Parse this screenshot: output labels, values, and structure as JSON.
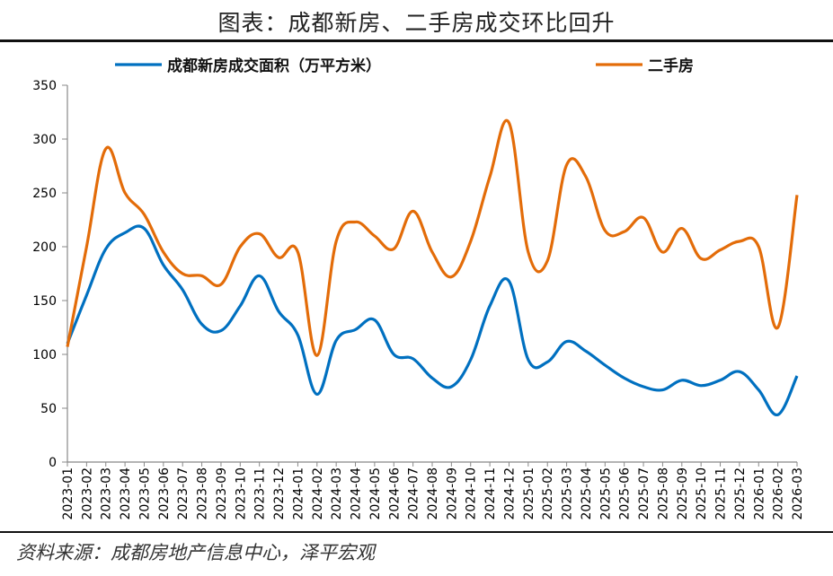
{
  "title": "图表：成都新房、二手房成交环比回升",
  "source": "资料来源：成都房地产信息中心，泽平宏观",
  "chart_data": {
    "type": "line",
    "title": "图表：成都新房、二手房成交环比回升",
    "xlabel": "",
    "ylabel": "",
    "ylim": [
      0,
      350
    ],
    "yticks": [
      0,
      50,
      100,
      150,
      200,
      250,
      300,
      350
    ],
    "grid": false,
    "legend": "top",
    "categories": [
      "2023-01",
      "2023-02",
      "2023-03",
      "2023-04",
      "2023-05",
      "2023-06",
      "2023-07",
      "2023-08",
      "2023-09",
      "2023-10",
      "2023-11",
      "2023-12",
      "2024-01",
      "2024-02",
      "2024-03",
      "2024-04",
      "2024-05",
      "2024-06",
      "2024-07",
      "2024-08",
      "2024-09",
      "2024-10",
      "2024-11",
      "2024-12",
      "2025-01",
      "2025-02",
      "2025-03",
      "2025-04",
      "2025-05",
      "2025-06",
      "2025-07",
      "2025-08",
      "2025-09",
      "2025-10",
      "2025-11",
      "2025-12",
      "2026-01",
      "2026-02",
      "2026-03"
    ],
    "series": [
      {
        "name": "成都新房成交面积（万平方米）",
        "color": "#0070C0",
        "values": [
          110,
          155,
          198,
          213,
          217,
          183,
          160,
          128,
          122,
          145,
          173,
          140,
          118,
          63,
          113,
          123,
          132,
          100,
          96,
          78,
          70,
          95,
          145,
          168,
          95,
          93,
          112,
          103,
          90,
          78,
          70,
          67,
          76,
          71,
          76,
          84,
          67,
          44,
          80
        ]
      },
      {
        "name": "二手房",
        "color": "#E36C09",
        "values": [
          107,
          200,
          291,
          250,
          230,
          195,
          175,
          173,
          165,
          200,
          212,
          190,
          195,
          99,
          205,
          223,
          210,
          198,
          233,
          195,
          172,
          205,
          265,
          315,
          195,
          187,
          276,
          265,
          215,
          214,
          227,
          195,
          217,
          189,
          197,
          205,
          200,
          125,
          248
        ]
      }
    ]
  }
}
